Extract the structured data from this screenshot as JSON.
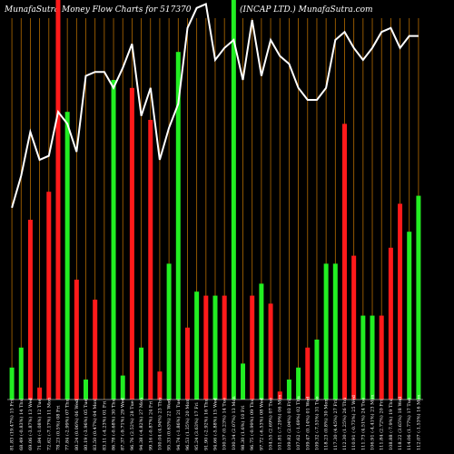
{
  "chart_data": {
    "type": "bar",
    "title_left": "MunafaSutra  Money Flow  Charts for 517370",
    "title_right": "(INCAP LTD.) MunafaSutra.com",
    "colors": {
      "background": "#000000",
      "up": "#22ee22",
      "down": "#ff1a1a",
      "line": "#ffffff",
      "grid": "#b36b00"
    },
    "categories": [
      "81.83 (19.47%) 15 Fri",
      "68.49 (-0.83%) 14 Thu",
      "69.06 (-3.87%) 13 Wed",
      "71.84 (-1.08%) 12 Tue",
      "72.62 (-7.17%) 11 Mon",
      "78.23 (0.5%) 08 Fri",
      "77.84 (-2.99%) 07 Thu",
      "80.24 (0.06%) 06 Wed",
      "80.19 (-3.96%) 05 Tue",
      "83.50 (0.47%) 04 Mon",
      "83.11 (-4.23%) 01 Fri",
      "86.78 (-0.68%) 30 Thu",
      "87.37 (-9.71%) 29 Wed",
      "96.76 (2.52%) 28 Tue",
      "94.38 (-4.82%) 27 Mon",
      "99.16 (-0.87%) 24 Fri",
      "100.04 (4.94%) 23 Thu",
      "95.33 (0.63%) 22 Wed",
      "94.74 (-1.86%) 21 Tue",
      "96.53 (1.35%) 20 Mon",
      "95.24 (3.63%) 17 Fri",
      "91.90 (-2.92%) 16 Thu",
      "94.66 (-5.88%) 15 Wed",
      "100.57 (0.23%) 14 Tue",
      "100.34 (2.07%) 13 Mon",
      "98.30 (1.6%) 10 Fri",
      "96.75 (-0.99%) 09 Thu",
      "97.72 (-6.53%) 08 Wed",
      "104.55 (2.69%) 07 Tue",
      "101.81 (-7.29%) 06 Mon",
      "109.82 (2.04%) 03 Fri",
      "107.62 (-1.69%) 02 Thu",
      "109.47 (0.14%) 01 Wed",
      "109.32 (-7.53%) 31 Tue",
      "118.23 (0.8%) 30 Mon",
      "117.30 (4.45%) 27 Fri",
      "112.30 (1.25%) 26 Thu",
      "110.91 (-0.73%) 25 Wed",
      "111.73 (4.51%) 24 Tue",
      "106.91 (-4.41%) 23 Mon",
      "111.84 (2.72%) 20 Fri",
      "108.88 (-7.9%) 19 Thu",
      "118.22 (3.65%) 18 Wed",
      "114.06 (1.77%) 17 Tue",
      "112.07 (-1.53%) 16 Mon"
    ],
    "bar_direction": [
      "up",
      "up",
      "down",
      "down",
      "down",
      "down",
      "up",
      "down",
      "up",
      "down",
      "down",
      "up",
      "up",
      "down",
      "up",
      "down",
      "down",
      "up",
      "up",
      "down",
      "up",
      "down",
      "up",
      "down",
      "up",
      "up",
      "down",
      "up",
      "down",
      "down",
      "up",
      "up",
      "down",
      "up",
      "up",
      "up",
      "down",
      "down",
      "up",
      "up",
      "down",
      "down",
      "down",
      "up",
      "up"
    ],
    "bar_height": [
      0.08,
      0.13,
      0.45,
      0.03,
      0.52,
      1.0,
      0.72,
      0.3,
      0.05,
      0.25,
      0.0,
      0.8,
      0.06,
      0.78,
      0.13,
      0.7,
      0.07,
      0.34,
      0.87,
      0.18,
      0.27,
      0.26,
      0.26,
      0.26,
      1.0,
      0.09,
      0.26,
      0.29,
      0.24,
      0.02,
      0.05,
      0.08,
      0.13,
      0.15,
      0.34,
      0.34,
      0.69,
      0.36,
      0.21,
      0.21,
      0.21,
      0.38,
      0.49,
      0.42,
      0.51
    ],
    "money_flow_line": [
      0.48,
      0.56,
      0.67,
      0.6,
      0.61,
      0.72,
      0.69,
      0.62,
      0.81,
      0.82,
      0.82,
      0.78,
      0.83,
      0.89,
      0.71,
      0.78,
      0.6,
      0.68,
      0.74,
      0.93,
      0.98,
      0.99,
      0.85,
      0.88,
      0.9,
      0.8,
      0.95,
      0.81,
      0.9,
      0.86,
      0.84,
      0.78,
      0.75,
      0.75,
      0.78,
      0.9,
      0.92,
      0.88,
      0.85,
      0.88,
      0.92,
      0.93,
      0.88,
      0.91,
      0.91
    ]
  }
}
